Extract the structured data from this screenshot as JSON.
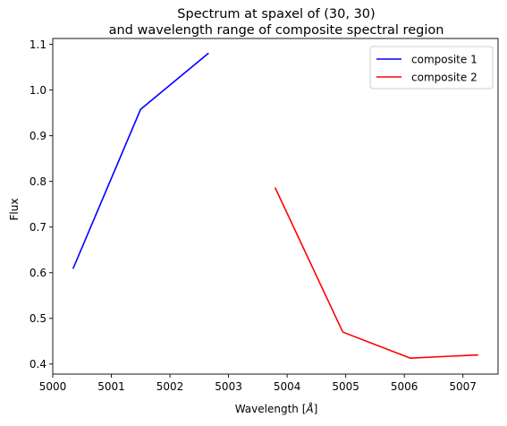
{
  "chart_data": {
    "type": "line",
    "title": "Spectrum at spaxel of (30, 30)",
    "subtitle": "and wavelength range of composite spectral region",
    "xlabel": "Wavelength [",
    "xlabel_unit": "Å",
    "xlabel_end": "]",
    "ylabel": "Flux",
    "xlim": [
      5000,
      5007.6
    ],
    "ylim": [
      0.378,
      1.113
    ],
    "xticks": [
      5000,
      5001,
      5002,
      5003,
      5004,
      5005,
      5006,
      5007
    ],
    "xtick_labels": [
      "5000",
      "5001",
      "5002",
      "5003",
      "5004",
      "5005",
      "5006",
      "5007"
    ],
    "yticks": [
      0.4,
      0.5,
      0.6,
      0.7,
      0.8,
      0.9,
      1.0,
      1.1
    ],
    "ytick_labels": [
      "0.4",
      "0.5",
      "0.6",
      "0.7",
      "0.8",
      "0.9",
      "1.0",
      "1.1"
    ],
    "grid": false,
    "legend_position": "top-right",
    "series": [
      {
        "name": "composite 1",
        "color": "#0000ff",
        "x": [
          5000.35,
          5001.5,
          5002.65
        ],
        "y": [
          0.61,
          0.958,
          1.08
        ]
      },
      {
        "name": "composite 2",
        "color": "#ff0000",
        "x": [
          5003.8,
          5004.95,
          5006.1,
          5007.25
        ],
        "y": [
          0.785,
          0.47,
          0.413,
          0.42
        ]
      }
    ]
  }
}
